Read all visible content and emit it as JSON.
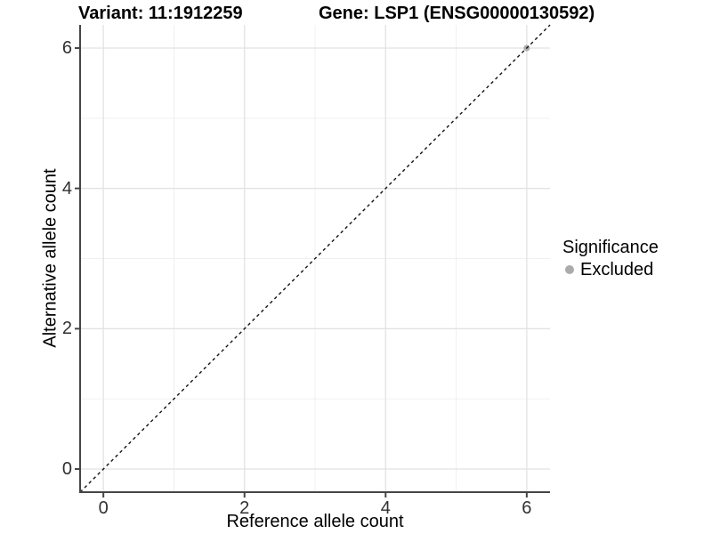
{
  "chart_data": {
    "type": "scatter",
    "title_left": "Variant: 11:1912259",
    "title_right": "Gene: LSP1 (ENSG00000130592)",
    "xlabel": "Reference allele count",
    "ylabel": "Alternative allele count",
    "x_range": [
      -0.33,
      6.33
    ],
    "y_range": [
      -0.33,
      6.33
    ],
    "x_major_ticks": [
      0,
      2,
      4,
      6
    ],
    "y_major_ticks": [
      0,
      2,
      4,
      6
    ],
    "x_minor_ticks": [
      1,
      3,
      5
    ],
    "y_minor_ticks": [
      1,
      3,
      5
    ],
    "grid": true,
    "points": [
      {
        "x": 6,
        "y": 6,
        "significance": "Excluded"
      }
    ],
    "reference_line": {
      "slope": 1,
      "intercept": 0,
      "style": "dashed",
      "color": "#111111"
    },
    "legend": {
      "title": "Significance",
      "position": "right",
      "items": [
        {
          "label": "Excluded",
          "color": "#ababab"
        }
      ]
    },
    "colors": {
      "background": "#ffffff",
      "grid_major": "#e2e2e2",
      "grid_minor": "#f0f0f0",
      "axis_line": "#454545",
      "tick_text": "#303030"
    }
  }
}
